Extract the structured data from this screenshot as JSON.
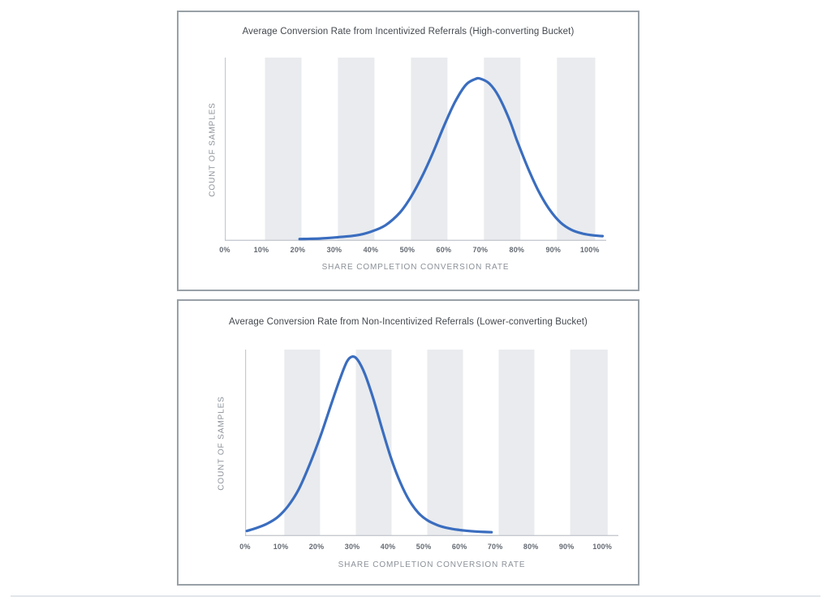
{
  "page": {
    "background": "#ffffff",
    "footer_divider_color": "#e2e6ea",
    "panel_border_color": "#99a0a7"
  },
  "chart_data": [
    {
      "type": "line",
      "variant": "distribution-curve",
      "title": "Average Conversion Rate from Incentivized Referrals (High-converting Bucket)",
      "xlabel": "SHARE COMPLETION CONVERSION RATE",
      "ylabel": "COUNT OF SAMPLES",
      "x_ticks": [
        "0%",
        "10%",
        "20%",
        "30%",
        "40%",
        "50%",
        "60%",
        "70%",
        "80%",
        "90%",
        "100%"
      ],
      "x_tick_step_percent": 10,
      "x_domain_percent": [
        0,
        104.5
      ],
      "y_axis_ticks_shown": false,
      "grid": false,
      "legend": false,
      "line_color": "#3a6dbf",
      "band_color": "#e9ebee",
      "axis_color": "#c6cad0",
      "background_bands_percent": [
        [
          11,
          21
        ],
        [
          31,
          41
        ],
        [
          51,
          61
        ],
        [
          71,
          81
        ],
        [
          91,
          101.5
        ]
      ],
      "peak_x_percent": 69.5,
      "curve_span_percent": [
        20.5,
        103.5
      ],
      "points": [
        [
          20.5,
          0.01
        ],
        [
          26,
          0.013
        ],
        [
          31,
          0.02
        ],
        [
          36,
          0.03
        ],
        [
          40,
          0.05
        ],
        [
          44,
          0.085
        ],
        [
          48,
          0.155
        ],
        [
          51,
          0.24
        ],
        [
          54,
          0.35
        ],
        [
          57,
          0.48
        ],
        [
          60,
          0.625
        ],
        [
          63,
          0.755
        ],
        [
          66,
          0.85
        ],
        [
          68.5,
          0.882
        ],
        [
          70,
          0.885
        ],
        [
          72.5,
          0.858
        ],
        [
          75,
          0.79
        ],
        [
          78,
          0.66
        ],
        [
          80,
          0.55
        ],
        [
          83,
          0.4
        ],
        [
          86,
          0.27
        ],
        [
          89,
          0.17
        ],
        [
          92,
          0.1
        ],
        [
          95,
          0.06
        ],
        [
          98,
          0.04
        ],
        [
          101,
          0.03
        ],
        [
          103.5,
          0.026
        ]
      ]
    },
    {
      "type": "line",
      "variant": "distribution-curve",
      "title": "Average Conversion Rate from Non-Incentivized Referrals (Lower-converting Bucket)",
      "xlabel": "SHARE COMPLETION CONVERSION RATE",
      "ylabel": "COUNT OF SAMPLES",
      "x_ticks": [
        "0%",
        "10%",
        "20%",
        "30%",
        "40%",
        "50%",
        "60%",
        "70%",
        "80%",
        "90%",
        "100%"
      ],
      "x_tick_step_percent": 10,
      "x_domain_percent": [
        0,
        104.5
      ],
      "y_axis_ticks_shown": false,
      "grid": false,
      "legend": false,
      "line_color": "#3a6dbf",
      "band_color": "#e9ebee",
      "axis_color": "#c6cad0",
      "background_bands_percent": [
        [
          11,
          21
        ],
        [
          31,
          41
        ],
        [
          51,
          61
        ],
        [
          71,
          81
        ],
        [
          91,
          101.5
        ]
      ],
      "peak_x_percent": 30,
      "curve_span_percent": [
        0.5,
        69
      ],
      "points": [
        [
          0.5,
          0.028
        ],
        [
          3,
          0.042
        ],
        [
          6,
          0.065
        ],
        [
          9,
          0.1
        ],
        [
          12,
          0.16
        ],
        [
          15,
          0.25
        ],
        [
          18,
          0.38
        ],
        [
          21,
          0.53
        ],
        [
          24,
          0.7
        ],
        [
          26.5,
          0.84
        ],
        [
          28.5,
          0.935
        ],
        [
          30,
          0.962
        ],
        [
          31.5,
          0.945
        ],
        [
          33.5,
          0.87
        ],
        [
          36,
          0.73
        ],
        [
          38.5,
          0.565
        ],
        [
          41,
          0.41
        ],
        [
          43.5,
          0.285
        ],
        [
          46,
          0.19
        ],
        [
          48.5,
          0.125
        ],
        [
          51,
          0.085
        ],
        [
          54,
          0.058
        ],
        [
          57,
          0.042
        ],
        [
          60,
          0.033
        ],
        [
          63,
          0.027
        ],
        [
          66,
          0.023
        ],
        [
          69,
          0.021
        ]
      ]
    }
  ]
}
